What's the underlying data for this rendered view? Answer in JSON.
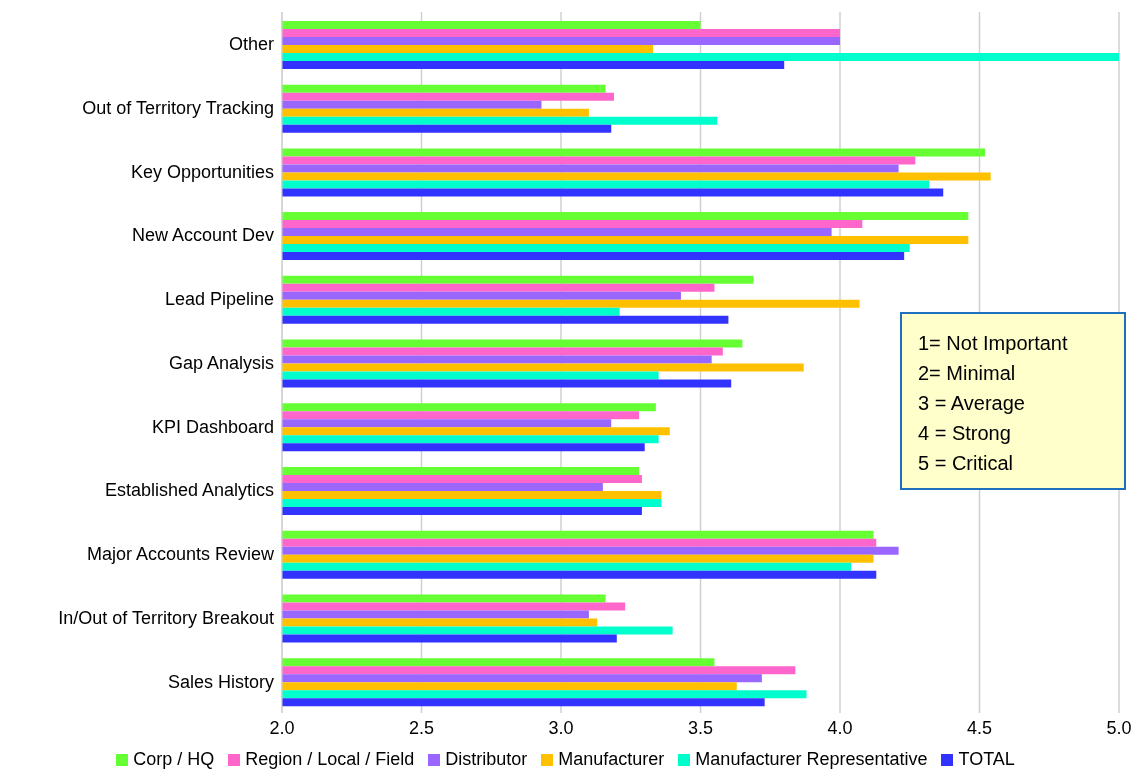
{
  "chart_data": {
    "type": "bar",
    "orientation": "horizontal",
    "categories": [
      "Other",
      "Out of Territory Tracking",
      "Key Opportunities",
      "New Account Dev",
      "Lead Pipeline",
      "Gap Analysis",
      "KPI Dashboard",
      "Established Analytics",
      "Major Accounts Review",
      "In/Out of Territory Breakout",
      "Sales History"
    ],
    "series": [
      {
        "name": "Corp / HQ",
        "color": "#66ff33",
        "values": [
          3.5,
          3.16,
          4.52,
          4.46,
          3.69,
          3.65,
          3.34,
          3.28,
          4.12,
          3.16,
          3.55
        ]
      },
      {
        "name": "Region / Local / Field",
        "color": "#ff66cc",
        "values": [
          4.0,
          3.19,
          4.27,
          4.08,
          3.55,
          3.58,
          3.28,
          3.29,
          4.13,
          3.23,
          3.84
        ]
      },
      {
        "name": "Distributor",
        "color": "#9966ff",
        "values": [
          4.0,
          2.93,
          4.21,
          3.97,
          3.43,
          3.54,
          3.18,
          3.15,
          4.21,
          3.1,
          3.72
        ]
      },
      {
        "name": "Manufacturer",
        "color": "#ffc000",
        "values": [
          3.33,
          3.1,
          4.54,
          4.46,
          4.07,
          3.87,
          3.39,
          3.36,
          4.12,
          3.13,
          3.63
        ]
      },
      {
        "name": "Manufacturer Representative",
        "color": "#00ffcc",
        "values": [
          5.0,
          3.56,
          4.32,
          4.25,
          3.21,
          3.35,
          3.35,
          3.36,
          4.04,
          3.4,
          3.88
        ]
      },
      {
        "name": "TOTAL",
        "color": "#3333ff",
        "values": [
          3.8,
          3.18,
          4.37,
          4.23,
          3.6,
          3.61,
          3.3,
          3.29,
          4.13,
          3.2,
          3.73
        ]
      }
    ],
    "xlim": [
      2.0,
      5.0
    ],
    "xticks": [
      {
        "value": 2,
        "label": "2.0"
      },
      {
        "value": 2.5,
        "label": "2.5"
      },
      {
        "value": 3,
        "label": "3.0"
      },
      {
        "value": 3.5,
        "label": "3.5"
      },
      {
        "value": 4,
        "label": "4.0"
      },
      {
        "value": 4.5,
        "label": "4.5"
      },
      {
        "value": 5,
        "label": "5.0"
      }
    ],
    "grid": "x",
    "legend": "bottom",
    "annotations": [
      "1= Not Important",
      "2= Minimal",
      "3 = Average",
      "4 = Strong",
      "5 = Critical"
    ]
  }
}
